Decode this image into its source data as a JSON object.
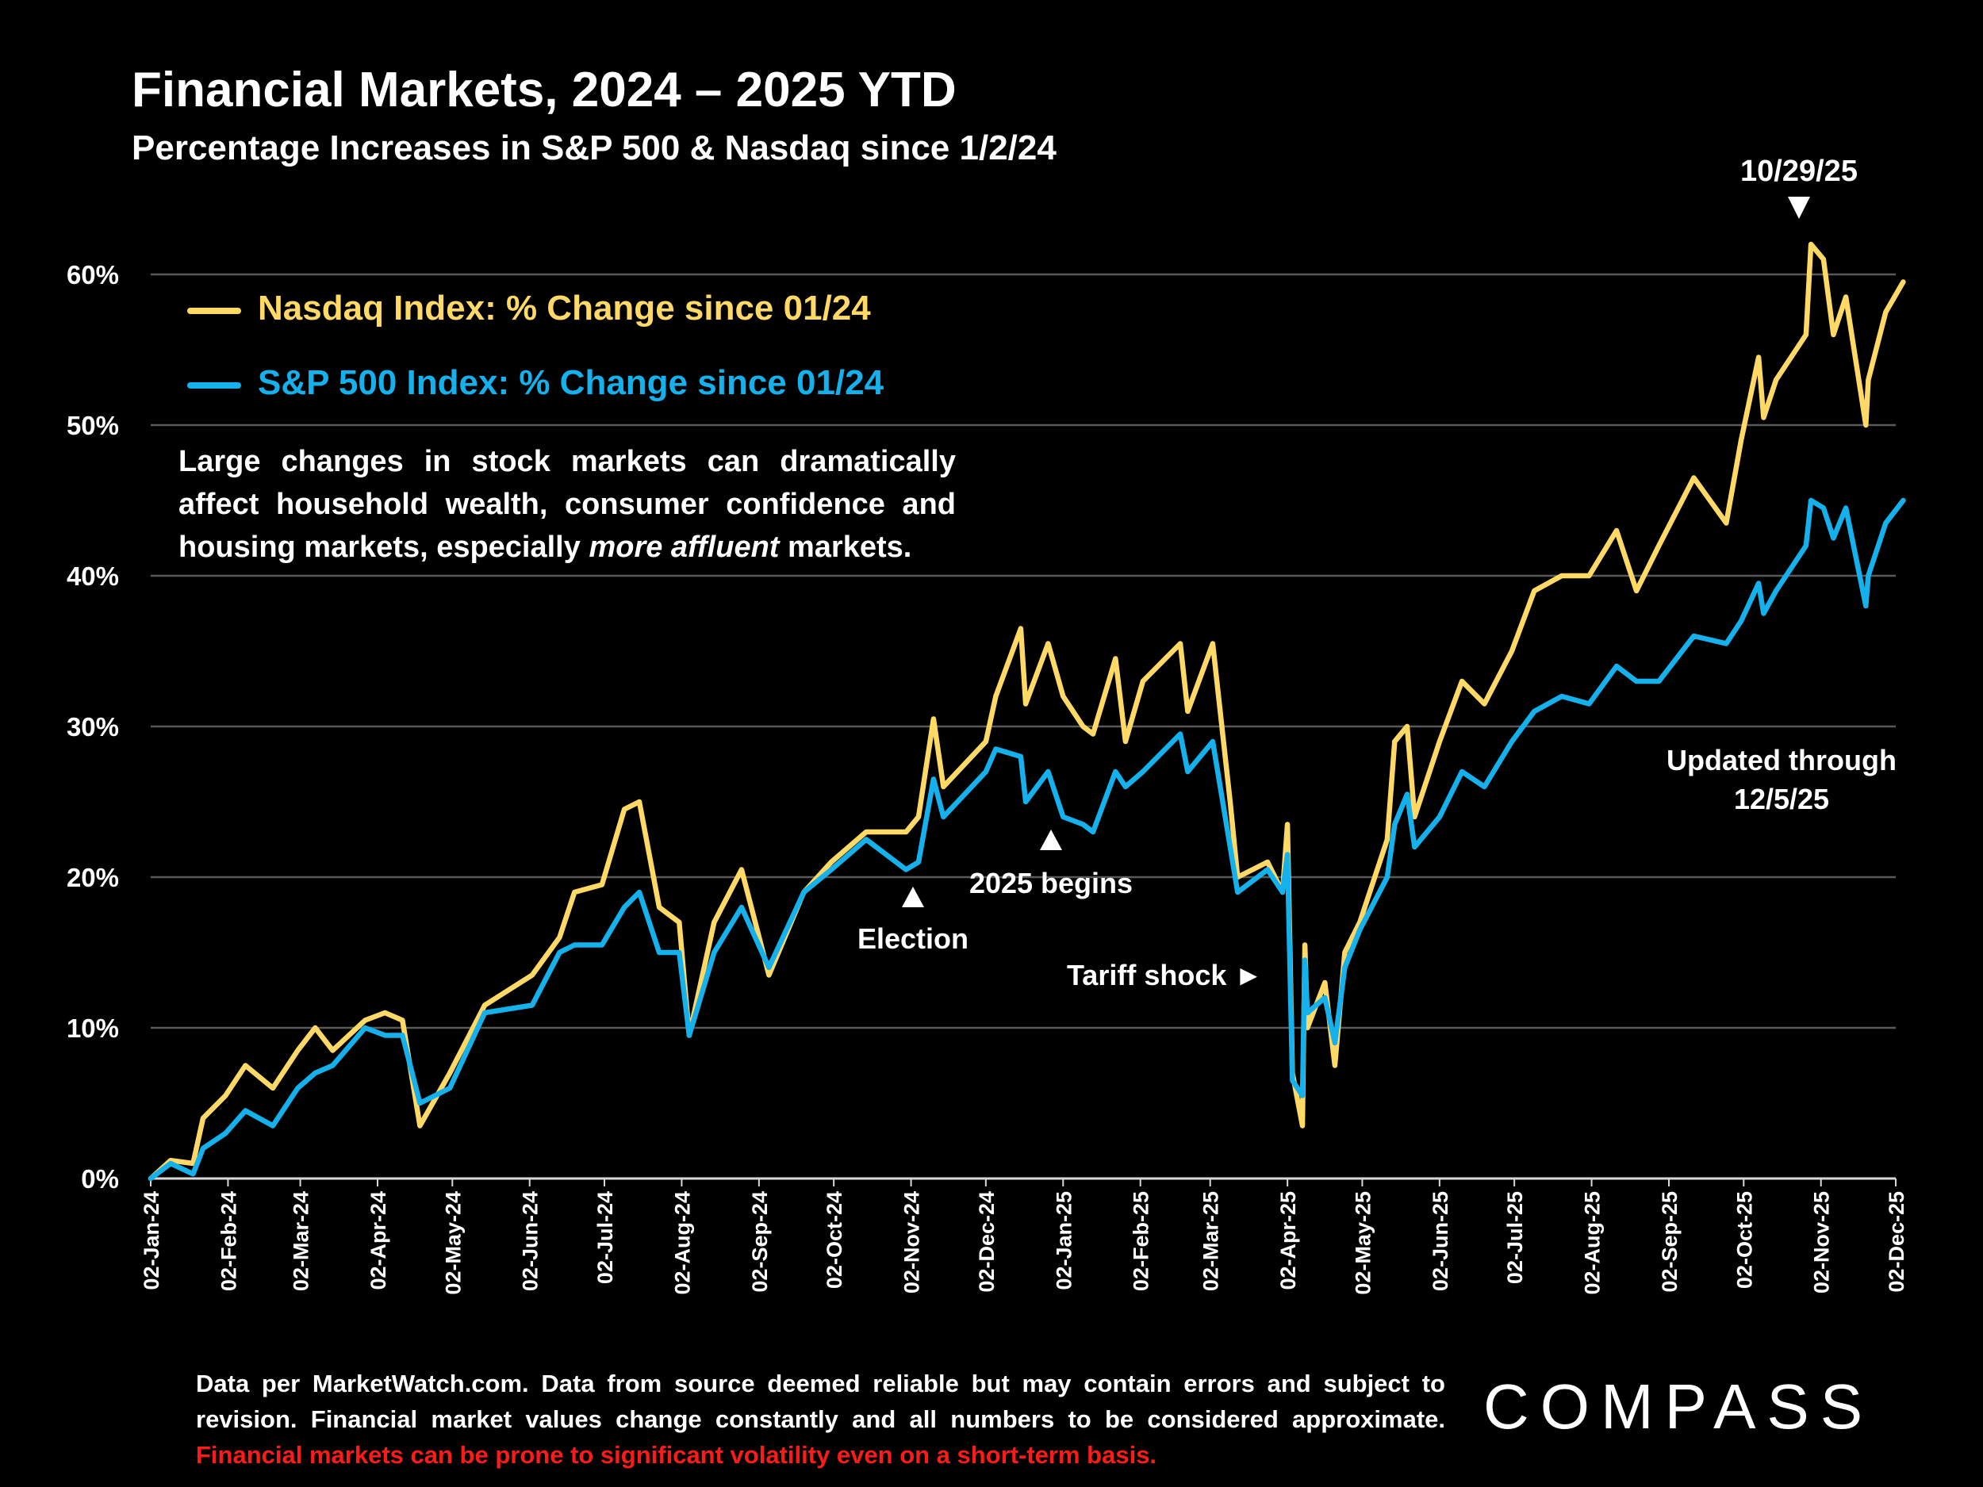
{
  "chart_data": {
    "type": "line",
    "title": "Financial Markets, 2024 – 2025 YTD",
    "subtitle": "Percentage Increases in S&P 500 & Nasdaq since 1/2/24",
    "ylim": [
      0,
      60
    ],
    "yticks": [
      "0%",
      "10%",
      "20%",
      "30%",
      "40%",
      "50%",
      "60%"
    ],
    "xticks": [
      "02-Jan-24",
      "02-Feb-24",
      "02-Mar-24",
      "02-Apr-24",
      "02-May-24",
      "02-Jun-24",
      "02-Jul-24",
      "02-Aug-24",
      "02-Sep-24",
      "02-Oct-24",
      "02-Nov-24",
      "02-Dec-24",
      "02-Jan-25",
      "02-Feb-25",
      "02-Mar-25",
      "02-Apr-25",
      "02-May-25",
      "02-Jun-25",
      "02-Jul-25",
      "02-Aug-25",
      "02-Sep-25",
      "02-Oct-25",
      "02-Nov-25",
      "02-Dec-25"
    ],
    "grid": true,
    "legend_position": "top-left",
    "x": [
      "2024-01-02",
      "2024-01-10",
      "2024-01-19",
      "2024-01-23",
      "2024-02-01",
      "2024-02-09",
      "2024-02-20",
      "2024-03-01",
      "2024-03-08",
      "2024-03-15",
      "2024-03-28",
      "2024-04-05",
      "2024-04-12",
      "2024-04-19",
      "2024-05-01",
      "2024-05-15",
      "2024-06-03",
      "2024-06-14",
      "2024-06-20",
      "2024-07-01",
      "2024-07-10",
      "2024-07-16",
      "2024-07-24",
      "2024-08-01",
      "2024-08-05",
      "2024-08-15",
      "2024-08-26",
      "2024-09-06",
      "2024-09-20",
      "2024-10-01",
      "2024-10-15",
      "2024-10-31",
      "2024-11-05",
      "2024-11-11",
      "2024-11-15",
      "2024-12-02",
      "2024-12-06",
      "2024-12-16",
      "2024-12-18",
      "2024-12-27",
      "2025-01-02",
      "2025-01-10",
      "2025-01-14",
      "2025-01-23",
      "2025-01-27",
      "2025-02-03",
      "2025-02-18",
      "2025-02-21",
      "2025-03-03",
      "2025-03-10",
      "2025-03-13",
      "2025-03-25",
      "2025-03-31",
      "2025-04-02",
      "2025-04-04",
      "2025-04-08",
      "2025-04-09",
      "2025-04-10",
      "2025-04-17",
      "2025-04-21",
      "2025-04-25",
      "2025-05-01",
      "2025-05-12",
      "2025-05-15",
      "2025-05-20",
      "2025-05-23",
      "2025-06-02",
      "2025-06-11",
      "2025-06-20",
      "2025-07-01",
      "2025-07-10",
      "2025-07-21",
      "2025-08-01",
      "2025-08-12",
      "2025-08-20",
      "2025-08-29",
      "2025-09-12",
      "2025-09-25",
      "2025-10-01",
      "2025-10-08",
      "2025-10-10",
      "2025-10-15",
      "2025-10-27",
      "2025-10-29",
      "2025-11-03",
      "2025-11-07",
      "2025-11-12",
      "2025-11-20",
      "2025-11-21",
      "2025-11-28",
      "2025-12-05"
    ],
    "series": [
      {
        "name": "Nasdaq Index: % Change since 01/24",
        "color": "#FFD966",
        "values": [
          0,
          1.2,
          1,
          4,
          5.5,
          7.5,
          6,
          8.5,
          10,
          8.5,
          10.5,
          11,
          10.5,
          3.5,
          7,
          11.5,
          13.5,
          16,
          19,
          19.5,
          24.5,
          25,
          18,
          17,
          9.5,
          17,
          20.5,
          13.5,
          19,
          21,
          23,
          23,
          24,
          30.5,
          26,
          29,
          32,
          36.5,
          31.5,
          35.5,
          32,
          30,
          29.5,
          34.5,
          29,
          33,
          35.5,
          31,
          35.5,
          25,
          20,
          21,
          19,
          23.5,
          7,
          3.5,
          15.5,
          10,
          13,
          7.5,
          15,
          17,
          22.5,
          29,
          30,
          24,
          29,
          33,
          31.5,
          35,
          39,
          40,
          40,
          43,
          39,
          42,
          46.5,
          43.5,
          49,
          54.5,
          50.5,
          53,
          56,
          62,
          61,
          56,
          58.5,
          50,
          53,
          57.5,
          59.5
        ]
      },
      {
        "name": "S&P 500 Index: % Change since 01/24",
        "color": "#14B1EC",
        "values": [
          0,
          1,
          0.3,
          2,
          3,
          4.5,
          3.5,
          6,
          7,
          7.5,
          10,
          9.5,
          9.5,
          5,
          6,
          11,
          11.5,
          15,
          15.5,
          15.5,
          18,
          19,
          15,
          15,
          9.5,
          15,
          18,
          14,
          19,
          20.5,
          22.5,
          20.5,
          21,
          26.5,
          24,
          27,
          28.5,
          28,
          25,
          27,
          24,
          23.5,
          23,
          27,
          26,
          27,
          29.5,
          27,
          29,
          22,
          19,
          20.5,
          19,
          21.5,
          6.5,
          5.5,
          14.5,
          11,
          12,
          9,
          14,
          16.5,
          20,
          23.5,
          25.5,
          22,
          24,
          27,
          26,
          29,
          31,
          32,
          31.5,
          34,
          33,
          33,
          36,
          35.5,
          37,
          39.5,
          37.5,
          39,
          42,
          45,
          44.5,
          42.5,
          44.5,
          38,
          40,
          43.5,
          45
        ]
      }
    ],
    "annotations": {
      "peak": "10/29/25",
      "updated": [
        "Updated through",
        "12/5/25"
      ],
      "election": "Election",
      "year_begins": "2025 begins",
      "tariff": "Tariff shock ►"
    }
  },
  "paragraph": {
    "before": "Large changes in stock markets can dramatically affect household wealth, consumer confidence and housing markets, especially ",
    "emphasis": "more affluent",
    "after": " markets."
  },
  "footer": {
    "text": "Data per MarketWatch.com. Data from source deemed reliable but may contain errors and subject to revision. Financial market values change constantly and all numbers to be considered approximate. ",
    "warning": "Financial markets can be prone to significant volatility even on a short-term basis."
  },
  "logo": "COMPASS"
}
